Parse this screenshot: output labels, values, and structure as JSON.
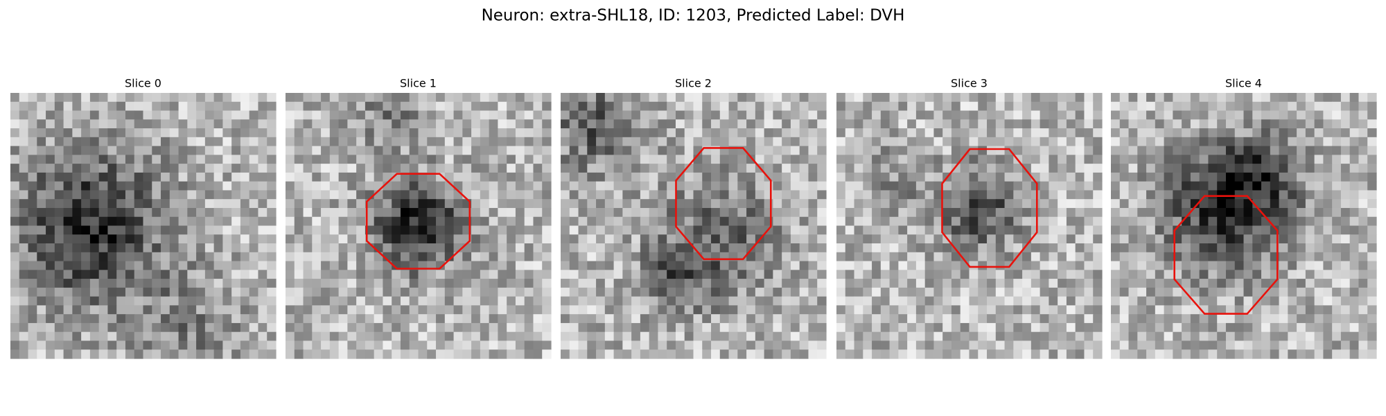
{
  "header": {
    "title": "Neuron: extra-SHL18, ID: 1203, Predicted Label: DVH"
  },
  "panels": [
    {
      "title": "Slice 0"
    },
    {
      "title": "Slice 1"
    },
    {
      "title": "Slice 2"
    },
    {
      "title": "Slice 3"
    },
    {
      "title": "Slice 4"
    }
  ]
}
